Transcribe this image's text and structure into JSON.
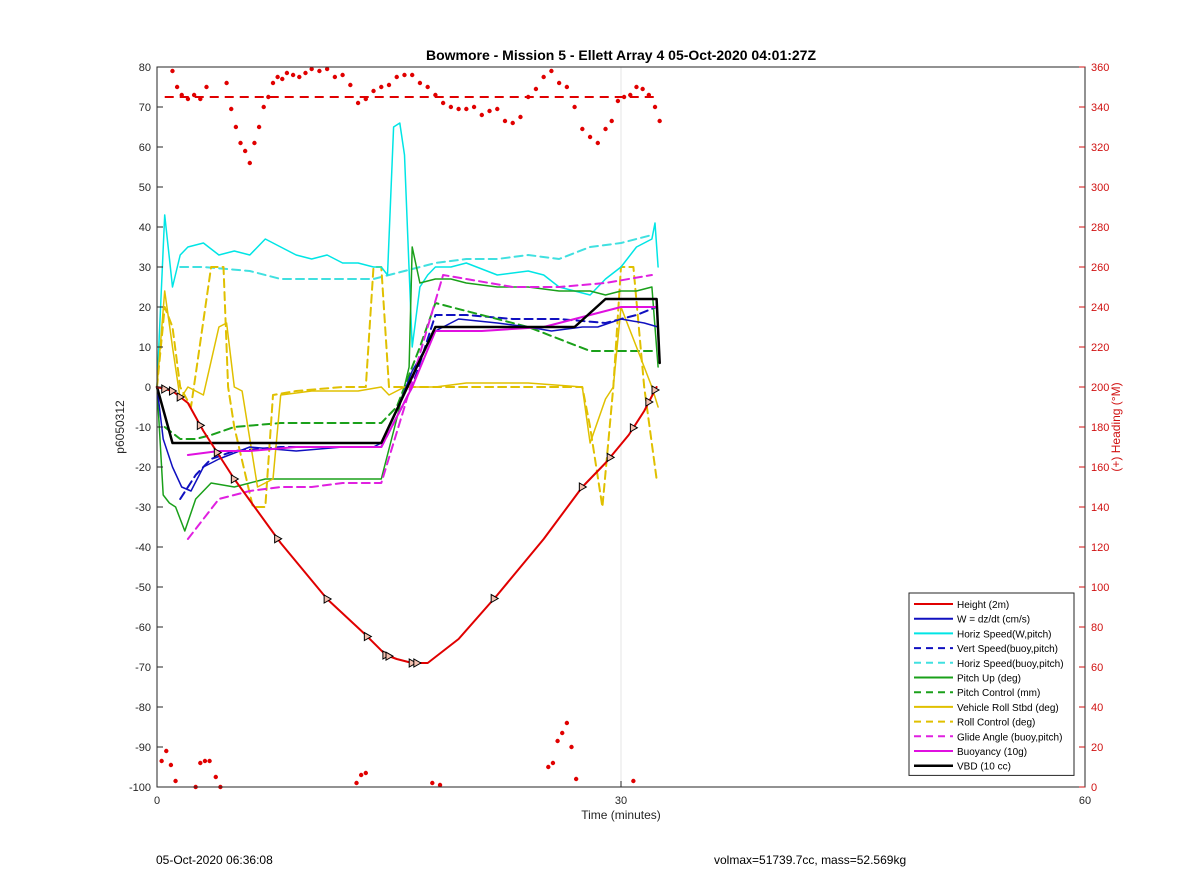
{
  "chart_data": {
    "type": "line",
    "title": "Bowmore - Mission 5 - Ellett Array 4 05-Oct-2020 04:01:27Z",
    "xlabel": "Time (minutes)",
    "ylabel_left": "p6050312",
    "ylabel_right": "(+) Heading (°M)",
    "xlim": [
      0,
      60
    ],
    "ylim_left": [
      -100,
      80
    ],
    "ylim_right": [
      0,
      360
    ],
    "xticks": [
      0,
      30,
      60
    ],
    "yticks_left": [
      -100,
      -90,
      -80,
      -70,
      -60,
      -50,
      -40,
      -30,
      -20,
      -10,
      0,
      10,
      20,
      30,
      40,
      50,
      60,
      70,
      80
    ],
    "yticks_right": [
      0,
      20,
      40,
      60,
      80,
      100,
      120,
      140,
      160,
      180,
      200,
      220,
      240,
      260,
      280,
      300,
      320,
      340,
      360
    ],
    "grid": "x-only",
    "legend_position": "bottom-right",
    "axis_colors": {
      "left": "#262626",
      "right": "#d01010"
    },
    "series": [
      {
        "name": "Height (2m)",
        "color": "#e00000",
        "style": "solid",
        "width": 2,
        "x": [
          0,
          1,
          2,
          3,
          5,
          8,
          11,
          13.5,
          14.8,
          15.5,
          16.5,
          17.5,
          19.5,
          22,
          25,
          27.5,
          29,
          30.5,
          31.5,
          32.3
        ],
        "y": [
          0,
          -1,
          -4,
          -11,
          -23,
          -39,
          -53,
          -62,
          -67,
          -68,
          -69,
          -69,
          -63,
          -52,
          -38,
          -25,
          -19,
          -12,
          -6,
          0
        ]
      },
      {
        "name": "W = dz/dt (cm/s)",
        "color": "#1010c0",
        "style": "solid",
        "width": 1.5,
        "x": [
          0,
          0.4,
          1,
          1.6,
          2.2,
          3,
          4,
          6,
          9,
          12,
          14,
          14.5,
          15.5,
          16.5,
          18,
          19.5,
          22,
          24,
          25.5,
          27.5,
          28.5,
          30,
          31.5,
          32.4
        ],
        "y": [
          0,
          -13,
          -20,
          -25,
          -26,
          -20,
          -18,
          -15,
          -16,
          -15,
          -15,
          -14,
          -6,
          4,
          14,
          17,
          16,
          15,
          14,
          15,
          15,
          17,
          16,
          15
        ]
      },
      {
        "name": "Horiz Speed(W,pitch)",
        "color": "#00e5e5",
        "style": "solid",
        "width": 1.5,
        "x": [
          0,
          0.5,
          1,
          1.5,
          2,
          3,
          4,
          5,
          6,
          7,
          8,
          9,
          10,
          11,
          12,
          13,
          14,
          14.5,
          14.9,
          15.3,
          15.7,
          16,
          16.5,
          17,
          17.5,
          18,
          19,
          20,
          22,
          24,
          25,
          26,
          27,
          28,
          29,
          30,
          31,
          32,
          32.2,
          32.4
        ],
        "y": [
          0,
          43,
          25,
          33,
          35,
          36,
          33,
          34,
          33,
          37,
          35,
          33,
          32,
          33,
          31,
          31,
          30,
          30,
          28,
          65,
          66,
          58,
          10,
          25,
          28,
          30,
          30,
          31,
          28,
          29,
          28,
          25,
          24,
          23,
          27,
          30,
          35,
          37,
          41,
          30
        ]
      },
      {
        "name": "Vert Speed(buoy,pitch)",
        "color": "#1010c0",
        "style": "dash",
        "width": 2,
        "x": [
          1.5,
          2.5,
          3.5,
          5,
          8,
          11,
          14.5,
          16.5,
          18,
          20,
          23,
          26,
          29,
          31,
          32.3
        ],
        "y": [
          -28,
          -22,
          -18,
          -16,
          -15,
          -15,
          -15,
          0,
          18,
          18,
          17,
          17,
          16,
          18,
          20
        ]
      },
      {
        "name": "Horiz Speed(buoy,pitch)",
        "color": "#40e0e0",
        "style": "dash",
        "width": 2,
        "x": [
          1.5,
          3,
          6,
          8,
          10,
          12,
          14,
          16,
          18,
          20,
          22,
          24,
          26,
          28,
          30,
          32
        ],
        "y": [
          30,
          30,
          29,
          27,
          27,
          27,
          27,
          29,
          31,
          32,
          32,
          33,
          32,
          35,
          36,
          38
        ]
      },
      {
        "name": "Pitch Up (deg)",
        "color": "#1aa01a",
        "style": "solid",
        "width": 1.5,
        "x": [
          0,
          0.4,
          0.8,
          1.2,
          1.8,
          2.5,
          3.5,
          5,
          7,
          9,
          11,
          13,
          14.5,
          15.5,
          16.3,
          16.5,
          17,
          18,
          19,
          20,
          22,
          24,
          26,
          28,
          29,
          30,
          31,
          32,
          32.4
        ],
        "y": [
          0,
          -27,
          -29,
          -30,
          -36,
          -28,
          -24,
          -25,
          -23,
          -23,
          -23,
          -23,
          -23,
          -8,
          5,
          35,
          26,
          27,
          27,
          26,
          25,
          25,
          24,
          24,
          23,
          24,
          24,
          25,
          5
        ]
      },
      {
        "name": "Pitch Control (mm)",
        "color": "#1aa01a",
        "style": "dash",
        "width": 2,
        "x": [
          0.5,
          1.5,
          2.5,
          3.5,
          5,
          8,
          12,
          14.5,
          15.5,
          17,
          18,
          20,
          24,
          28,
          32.3
        ],
        "y": [
          -10,
          -13,
          -13,
          -12,
          -10,
          -9,
          -9,
          -9,
          -5,
          10,
          21,
          19,
          15,
          9,
          9
        ]
      },
      {
        "name": "Vehicle Roll Stbd (deg)",
        "color": "#e0c000",
        "style": "solid",
        "width": 1.5,
        "x": [
          0,
          0.5,
          1,
          1.5,
          2,
          3,
          4,
          4.5,
          5,
          5.5,
          6.5,
          7.5,
          8,
          10,
          13,
          14.5,
          15,
          16,
          18,
          20,
          24,
          27.5,
          28,
          29,
          29.5,
          30,
          30.5,
          31,
          32,
          32.4
        ],
        "y": [
          0,
          24,
          10,
          -3,
          0,
          -2,
          15,
          16,
          0,
          -1,
          -25,
          -23,
          -2,
          -1,
          -1,
          0,
          -2,
          0,
          0,
          1,
          1,
          0,
          -14,
          -3,
          0,
          20,
          15,
          10,
          0,
          -5
        ]
      },
      {
        "name": "Roll Control (deg)",
        "color": "#e0c000",
        "style": "dash",
        "width": 2,
        "x": [
          0,
          0.5,
          1,
          1.5,
          2.2,
          3.5,
          4.3,
          4.6,
          5,
          6.2,
          7,
          7.5,
          9,
          12,
          13.5,
          14,
          14.5,
          15,
          18,
          25,
          27.5,
          28,
          28.8,
          29.5,
          30,
          30.8,
          31.5,
          32.3
        ],
        "y": [
          0,
          20,
          15,
          0,
          -5,
          30,
          30,
          0,
          -10,
          -30,
          -30,
          -2,
          -1,
          0,
          0,
          30,
          30,
          0,
          0,
          0,
          0,
          -10,
          -30,
          0,
          30,
          30,
          0,
          -23
        ]
      },
      {
        "name": "Glide Angle (buoy,pitch)",
        "color": "#e020e0",
        "style": "dash",
        "width": 2,
        "x": [
          2,
          3,
          4,
          6,
          8,
          10,
          12,
          14.5,
          16,
          17.5,
          18.5,
          20,
          23,
          26,
          29,
          32
        ],
        "y": [
          -38,
          -33,
          -28,
          -26,
          -25,
          -25,
          -24,
          -24,
          -5,
          15,
          28,
          27,
          25,
          25,
          26,
          28
        ]
      },
      {
        "name": "Buoyancy (10g)",
        "color": "#e010e0",
        "style": "solid",
        "width": 2,
        "x": [
          2,
          4,
          6,
          9,
          12,
          14.5,
          16.5,
          18,
          21,
          25,
          27,
          30,
          32.3
        ],
        "y": [
          -17,
          -16,
          -16,
          -15,
          -15,
          -15,
          0,
          14,
          14,
          15,
          17,
          20,
          20
        ]
      },
      {
        "name": "VBD (10 cc)",
        "color": "#000000",
        "style": "solid",
        "width": 2.5,
        "x": [
          0,
          1,
          14.5,
          18,
          27,
          29,
          32.3,
          32.5
        ],
        "y": [
          0,
          -14,
          -14,
          15,
          15,
          22,
          22,
          6
        ]
      }
    ],
    "heading_ref": {
      "y_right": 345,
      "x_start": 0.5,
      "x_end": 32.5,
      "color": "#e00000"
    },
    "heading_dots": {
      "color": "#e00000",
      "x": [
        1.0,
        1.3,
        1.6,
        2.0,
        2.4,
        2.8,
        3.2,
        4.5,
        4.8,
        5.1,
        5.4,
        5.7,
        6.0,
        6.3,
        6.6,
        6.9,
        7.2,
        7.5,
        7.8,
        8.1,
        8.4,
        8.8,
        9.2,
        9.6,
        10.0,
        10.5,
        11.0,
        11.5,
        12.0,
        12.5,
        13.0,
        13.5,
        14.0,
        14.5,
        15.0,
        15.5,
        16.0,
        16.5,
        17.0,
        17.5,
        18.0,
        18.5,
        19.0,
        19.5,
        20.0,
        20.5,
        21.0,
        21.5,
        22.0,
        22.5,
        23.0,
        23.5,
        24.0,
        24.5,
        25.0,
        25.5,
        26.0,
        26.5,
        27.0,
        27.5,
        28.0,
        28.5,
        29.0,
        29.4,
        29.8,
        30.2,
        30.6,
        31.0,
        31.4,
        31.8,
        32.2,
        32.5,
        0.3,
        0.6,
        0.9,
        1.2,
        2.5,
        2.8,
        3.1,
        3.4,
        3.8,
        4.1,
        25.3,
        25.6,
        25.9,
        26.2,
        26.5,
        26.8,
        27.1,
        17.8,
        18.3,
        12.9,
        13.2,
        13.5,
        30.8
      ],
      "y": [
        358,
        350,
        346,
        344,
        346,
        344,
        350,
        352,
        339,
        330,
        322,
        318,
        312,
        322,
        330,
        340,
        345,
        352,
        355,
        354,
        357,
        356,
        355,
        357,
        359,
        358,
        359,
        355,
        356,
        351,
        342,
        344,
        348,
        350,
        351,
        355,
        356,
        356,
        352,
        350,
        346,
        342,
        340,
        339,
        339,
        340,
        336,
        338,
        339,
        333,
        332,
        335,
        345,
        349,
        355,
        358,
        352,
        350,
        340,
        329,
        325,
        322,
        329,
        333,
        343,
        345,
        346,
        350,
        349,
        346,
        340,
        333,
        13,
        18,
        11,
        3,
        0,
        12,
        13,
        13,
        5,
        0,
        10,
        12,
        23,
        27,
        32,
        20,
        4,
        2,
        1,
        2,
        6,
        7,
        3
      ]
    },
    "triangle_markers": {
      "x": [
        0.5,
        1.0,
        1.5,
        2.8,
        3.9,
        5.0,
        7.8,
        11.0,
        13.6,
        14.8,
        15.0,
        16.5,
        16.8,
        21.8,
        27.5,
        29.3,
        30.8,
        31.8,
        32.2
      ]
    }
  },
  "footer": {
    "left": "05-Oct-2020 06:36:08",
    "right": "volmax=51739.7cc, mass=52.569kg"
  }
}
